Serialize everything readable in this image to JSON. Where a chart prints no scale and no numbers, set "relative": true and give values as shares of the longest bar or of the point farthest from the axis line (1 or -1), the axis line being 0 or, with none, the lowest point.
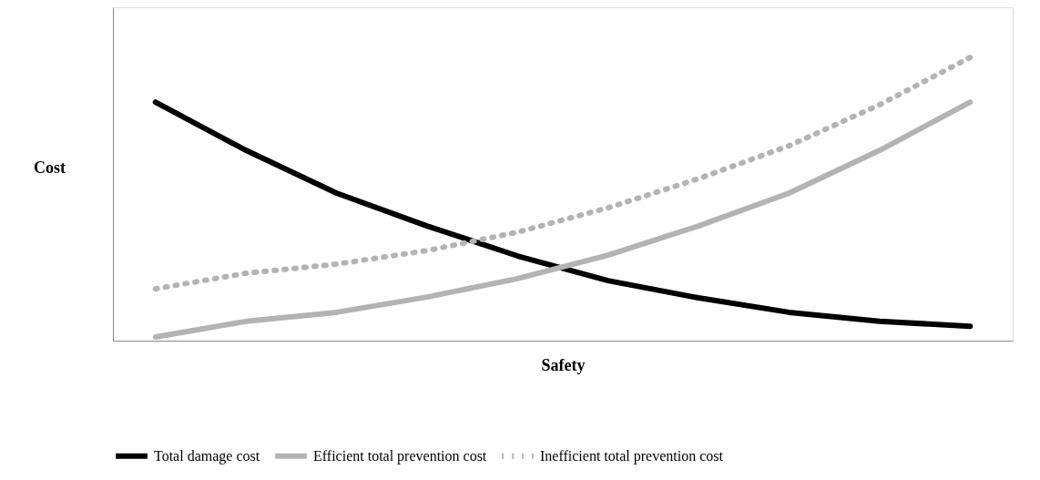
{
  "chart_data": {
    "type": "line",
    "relative": true,
    "xlabel": "Safety",
    "ylabel": "Cost",
    "categories": [
      null,
      null,
      null,
      null,
      null,
      null,
      null,
      null,
      null,
      null
    ],
    "series": [
      {
        "name": "Total damage cost",
        "color": "#000000",
        "line_style": "solid",
        "values": [
          0.842,
          0.672,
          0.521,
          0.405,
          0.299,
          0.212,
          0.151,
          0.1,
          0.068,
          0.051
        ]
      },
      {
        "name": "Efficient total prevention cost",
        "color": "#b3b3b3",
        "line_style": "solid",
        "values": [
          0.013,
          0.068,
          0.1,
          0.154,
          0.219,
          0.302,
          0.405,
          0.521,
          0.672,
          0.842
        ]
      },
      {
        "name": "Inefficient total prevention cost",
        "color": "#b3b3b3",
        "line_style": "dotted",
        "values": [
          0.183,
          0.238,
          0.27,
          0.318,
          0.383,
          0.469,
          0.572,
          0.688,
          0.833,
          1.0
        ]
      }
    ],
    "legend": "bottom",
    "tick_labels": false,
    "grid": false,
    "marker": "none"
  }
}
